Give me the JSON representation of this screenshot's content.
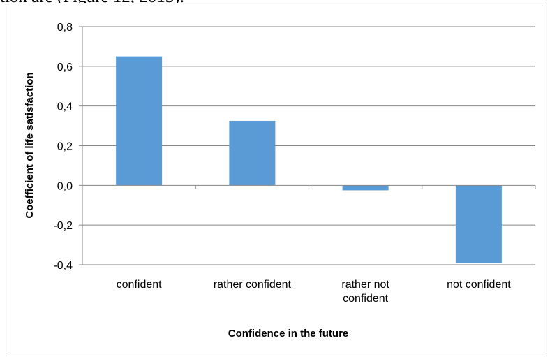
{
  "page_fragment": "tion are (Figure 12, 2015).",
  "chart_data": {
    "type": "bar",
    "categories": [
      "confident",
      "rather confident",
      "rather not confident",
      "not confident"
    ],
    "category_label_lines": [
      [
        "confident"
      ],
      [
        "rather confident"
      ],
      [
        "rather not",
        "confident"
      ],
      [
        "not confident"
      ]
    ],
    "values": [
      0.65,
      0.325,
      -0.025,
      -0.39
    ],
    "xlabel": "Confidence in the future",
    "ylabel": "Coefficient of life satisfaction",
    "ylim": [
      -0.4,
      0.8
    ],
    "yticks": [
      0.8,
      0.6,
      0.4,
      0.2,
      0.0,
      -0.2,
      -0.4
    ],
    "ytick_labels": [
      "0,8",
      "0,6",
      "0,4",
      "0,2",
      "0,0",
      "-0,2",
      "-0,4"
    ],
    "grid": true,
    "bar_color": "#5b9bd5",
    "gridline_color": "#868686"
  }
}
